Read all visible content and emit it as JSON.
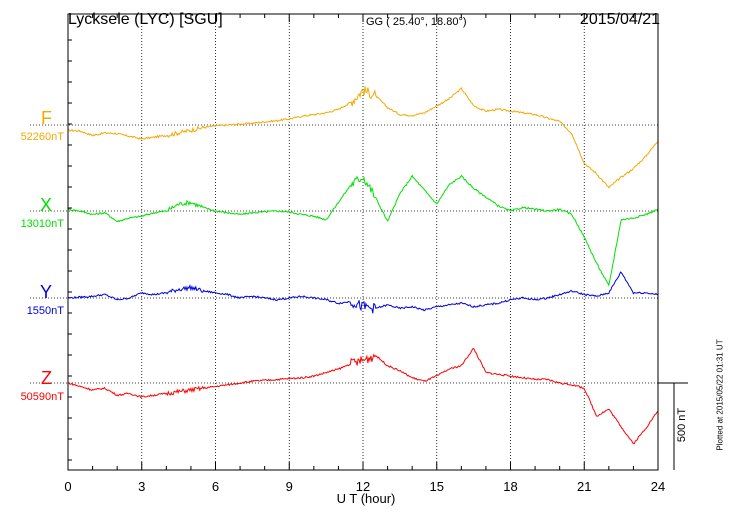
{
  "header": {
    "station": "Lycksele (LYC)  [SGU]",
    "coords": "GG ( 25.40°,  18.80°)",
    "date": "2015/04/21"
  },
  "footer": {
    "scale_label": "500 nT",
    "plotted_note": "Plotted at 2015/05/22 01:31  UT"
  },
  "chart_data": {
    "type": "line",
    "xlabel": "U T (hour)",
    "xlim": [
      0,
      24
    ],
    "x_ticks": [
      "0",
      "3",
      "6",
      "9",
      "12",
      "15",
      "18",
      "21",
      "24"
    ],
    "scale_bar_nT": 500,
    "grid": true,
    "series": [
      {
        "name": "F",
        "baseline_label": "52260nT",
        "baseline_nT": 52260,
        "color": "#f5a800",
        "x": [
          0,
          0.5,
          1,
          1.5,
          2,
          2.5,
          3,
          3.5,
          4,
          4.5,
          5,
          5.5,
          6,
          6.5,
          7,
          7.5,
          8,
          8.5,
          9,
          9.5,
          10,
          10.5,
          11,
          11.5,
          12,
          12.5,
          13,
          13.5,
          14,
          14.5,
          15,
          15.5,
          16,
          16.5,
          17,
          17.5,
          18,
          18.5,
          19,
          19.5,
          20,
          20.5,
          21,
          21.5,
          22,
          22.5,
          23,
          23.5,
          24
        ],
        "y": [
          -30,
          -35,
          -60,
          -45,
          -50,
          -65,
          -80,
          -70,
          -60,
          -45,
          -30,
          -15,
          -5,
          0,
          5,
          10,
          18,
          25,
          35,
          50,
          60,
          70,
          90,
          130,
          200,
          170,
          100,
          60,
          55,
          70,
          110,
          150,
          210,
          110,
          80,
          90,
          80,
          70,
          60,
          40,
          20,
          -50,
          -220,
          -280,
          -360,
          -300,
          -250,
          -180,
          -90
        ]
      },
      {
        "name": "X",
        "baseline_label": "13010nT",
        "baseline_nT": 13010,
        "color": "#00e000",
        "x": [
          0,
          0.5,
          1,
          1.5,
          2,
          2.5,
          3,
          3.5,
          4,
          4.5,
          5,
          5.5,
          6,
          6.5,
          7,
          7.5,
          8,
          8.5,
          9,
          9.5,
          10,
          10.5,
          11,
          11.5,
          12,
          12.5,
          13,
          13.5,
          14,
          14.5,
          15,
          15.5,
          16,
          16.5,
          17,
          17.5,
          18,
          18.5,
          19,
          19.5,
          20,
          20.5,
          21,
          21.5,
          22,
          22.5,
          23,
          23.5,
          24
        ],
        "y": [
          10,
          0,
          -20,
          -10,
          -60,
          -40,
          -30,
          -10,
          0,
          40,
          50,
          20,
          0,
          -10,
          -20,
          -10,
          -5,
          0,
          -5,
          -20,
          -30,
          -50,
          50,
          150,
          200,
          80,
          -60,
          100,
          200,
          120,
          40,
          150,
          200,
          130,
          80,
          30,
          0,
          20,
          10,
          0,
          10,
          -20,
          -150,
          -300,
          -430,
          -50,
          -40,
          -20,
          10
        ]
      },
      {
        "name": "Y",
        "baseline_label": "1550nT",
        "baseline_nT": 1550,
        "color": "#0000e0",
        "x": [
          0,
          0.5,
          1,
          1.5,
          2,
          2.5,
          3,
          3.5,
          4,
          4.5,
          5,
          5.5,
          6,
          6.5,
          7,
          7.5,
          8,
          8.5,
          9,
          9.5,
          10,
          10.5,
          11,
          11.5,
          12,
          12.5,
          13,
          13.5,
          14,
          14.5,
          15,
          15.5,
          16,
          16.5,
          17,
          17.5,
          18,
          18.5,
          19,
          19.5,
          20,
          20.5,
          21,
          21.5,
          22,
          22.5,
          23,
          23.5,
          24
        ],
        "y": [
          0,
          5,
          10,
          20,
          -10,
          0,
          30,
          20,
          30,
          50,
          60,
          40,
          30,
          20,
          0,
          10,
          0,
          -10,
          0,
          10,
          0,
          -10,
          -30,
          -20,
          -50,
          -60,
          -40,
          -60,
          -50,
          -70,
          -50,
          -40,
          -30,
          -50,
          -40,
          -30,
          -10,
          0,
          -10,
          0,
          20,
          40,
          20,
          10,
          30,
          150,
          30,
          30,
          20
        ]
      },
      {
        "name": "Z",
        "baseline_label": "50590nT",
        "baseline_nT": 50590,
        "color": "#ff0000",
        "x": [
          0,
          0.5,
          1,
          1.5,
          2,
          2.5,
          3,
          3.5,
          4,
          4.5,
          5,
          5.5,
          6,
          6.5,
          7,
          7.5,
          8,
          8.5,
          9,
          9.5,
          10,
          10.5,
          11,
          11.5,
          12,
          12.5,
          13,
          13.5,
          14,
          14.5,
          15,
          15.5,
          16,
          16.5,
          17,
          17.5,
          18,
          18.5,
          19,
          19.5,
          20,
          20.5,
          21,
          21.5,
          22,
          22.5,
          23,
          23.5,
          24
        ],
        "y": [
          0,
          -20,
          -40,
          -30,
          -70,
          -60,
          -80,
          -70,
          -60,
          -50,
          -40,
          -30,
          -20,
          -10,
          0,
          10,
          15,
          20,
          25,
          30,
          40,
          60,
          80,
          110,
          130,
          160,
          100,
          70,
          30,
          10,
          40,
          80,
          100,
          200,
          60,
          50,
          40,
          30,
          20,
          20,
          0,
          -10,
          -30,
          -190,
          -150,
          -250,
          -350,
          -260,
          -160
        ]
      }
    ]
  }
}
